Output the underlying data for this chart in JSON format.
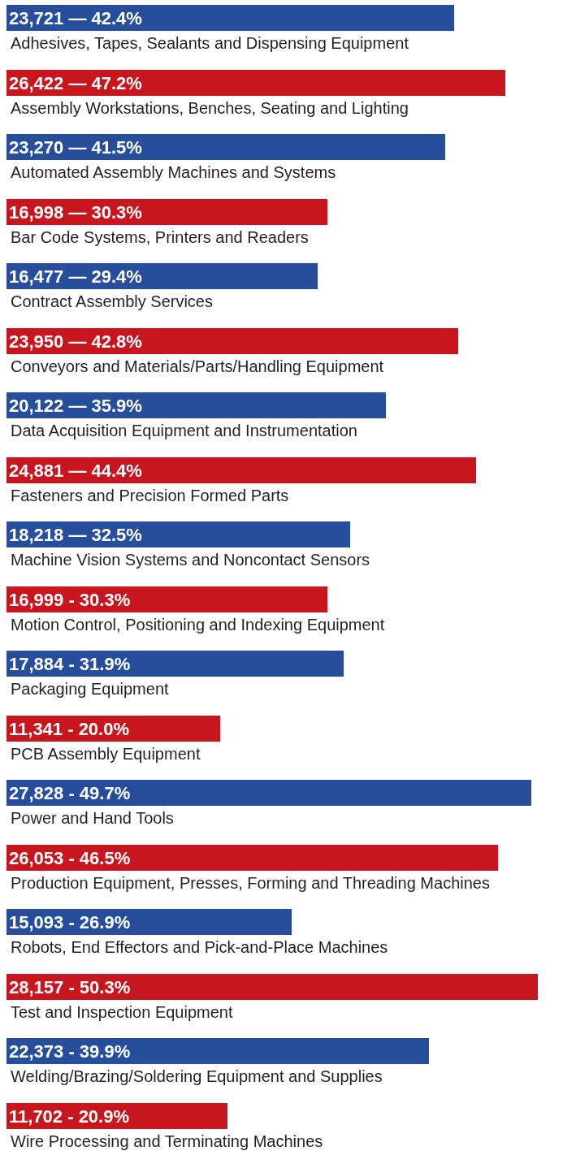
{
  "chart_data": {
    "type": "bar",
    "orientation": "horizontal",
    "categories": [
      "Adhesives, Tapes, Sealants and Dispensing Equipment",
      "Assembly Workstations, Benches, Seating and Lighting",
      "Automated Assembly Machines and Systems",
      "Bar Code Systems, Printers and Readers",
      "Contract Assembly Services",
      "Conveyors and Materials/Parts/Handling Equipment",
      "Data Acquisition Equipment and Instrumentation",
      "Fasteners and Precision Formed Parts",
      "Machine Vision Systems and Noncontact Sensors",
      "Motion Control, Positioning and Indexing Equipment",
      "Packaging Equipment",
      "PCB Assembly Equipment",
      "Power and Hand Tools",
      "Production Equipment, Presses, Forming and Threading Machines",
      "Robots, End Effectors and Pick-and-Place Machines",
      "Test and Inspection Equipment",
      "Welding/Brazing/Soldering Equipment and Supplies",
      "Wire Processing and Terminating Machines"
    ],
    "values": [
      23721,
      26422,
      23270,
      16998,
      16477,
      23950,
      20122,
      24881,
      18218,
      16999,
      17884,
      11341,
      27828,
      26053,
      15093,
      28157,
      22373,
      11702
    ],
    "value_labels": [
      "23,721 — 42.4%",
      "26,422 — 47.2%",
      "23,270 — 41.5%",
      "16,998 — 30.3%",
      "16,477 — 29.4%",
      "23,950 — 42.8%",
      "20,122 — 35.9%",
      "24,881 — 44.4%",
      "18,218 — 32.5%",
      "16,999 - 30.3%",
      "17,884 - 31.9%",
      "11,341 - 20.0%",
      "27,828 - 49.7%",
      "26,053 - 46.5%",
      "15,093 - 26.9%",
      "28,157 - 50.3%",
      "22,373 - 39.9%",
      "11,702 - 20.9%"
    ],
    "colors": [
      "#264e9a",
      "#c8161e",
      "#264e9a",
      "#c8161e",
      "#264e9a",
      "#c8161e",
      "#264e9a",
      "#c8161e",
      "#264e9a",
      "#c8161e",
      "#264e9a",
      "#c8161e",
      "#264e9a",
      "#c8161e",
      "#264e9a",
      "#c8161e",
      "#264e9a",
      "#c8161e"
    ]
  }
}
